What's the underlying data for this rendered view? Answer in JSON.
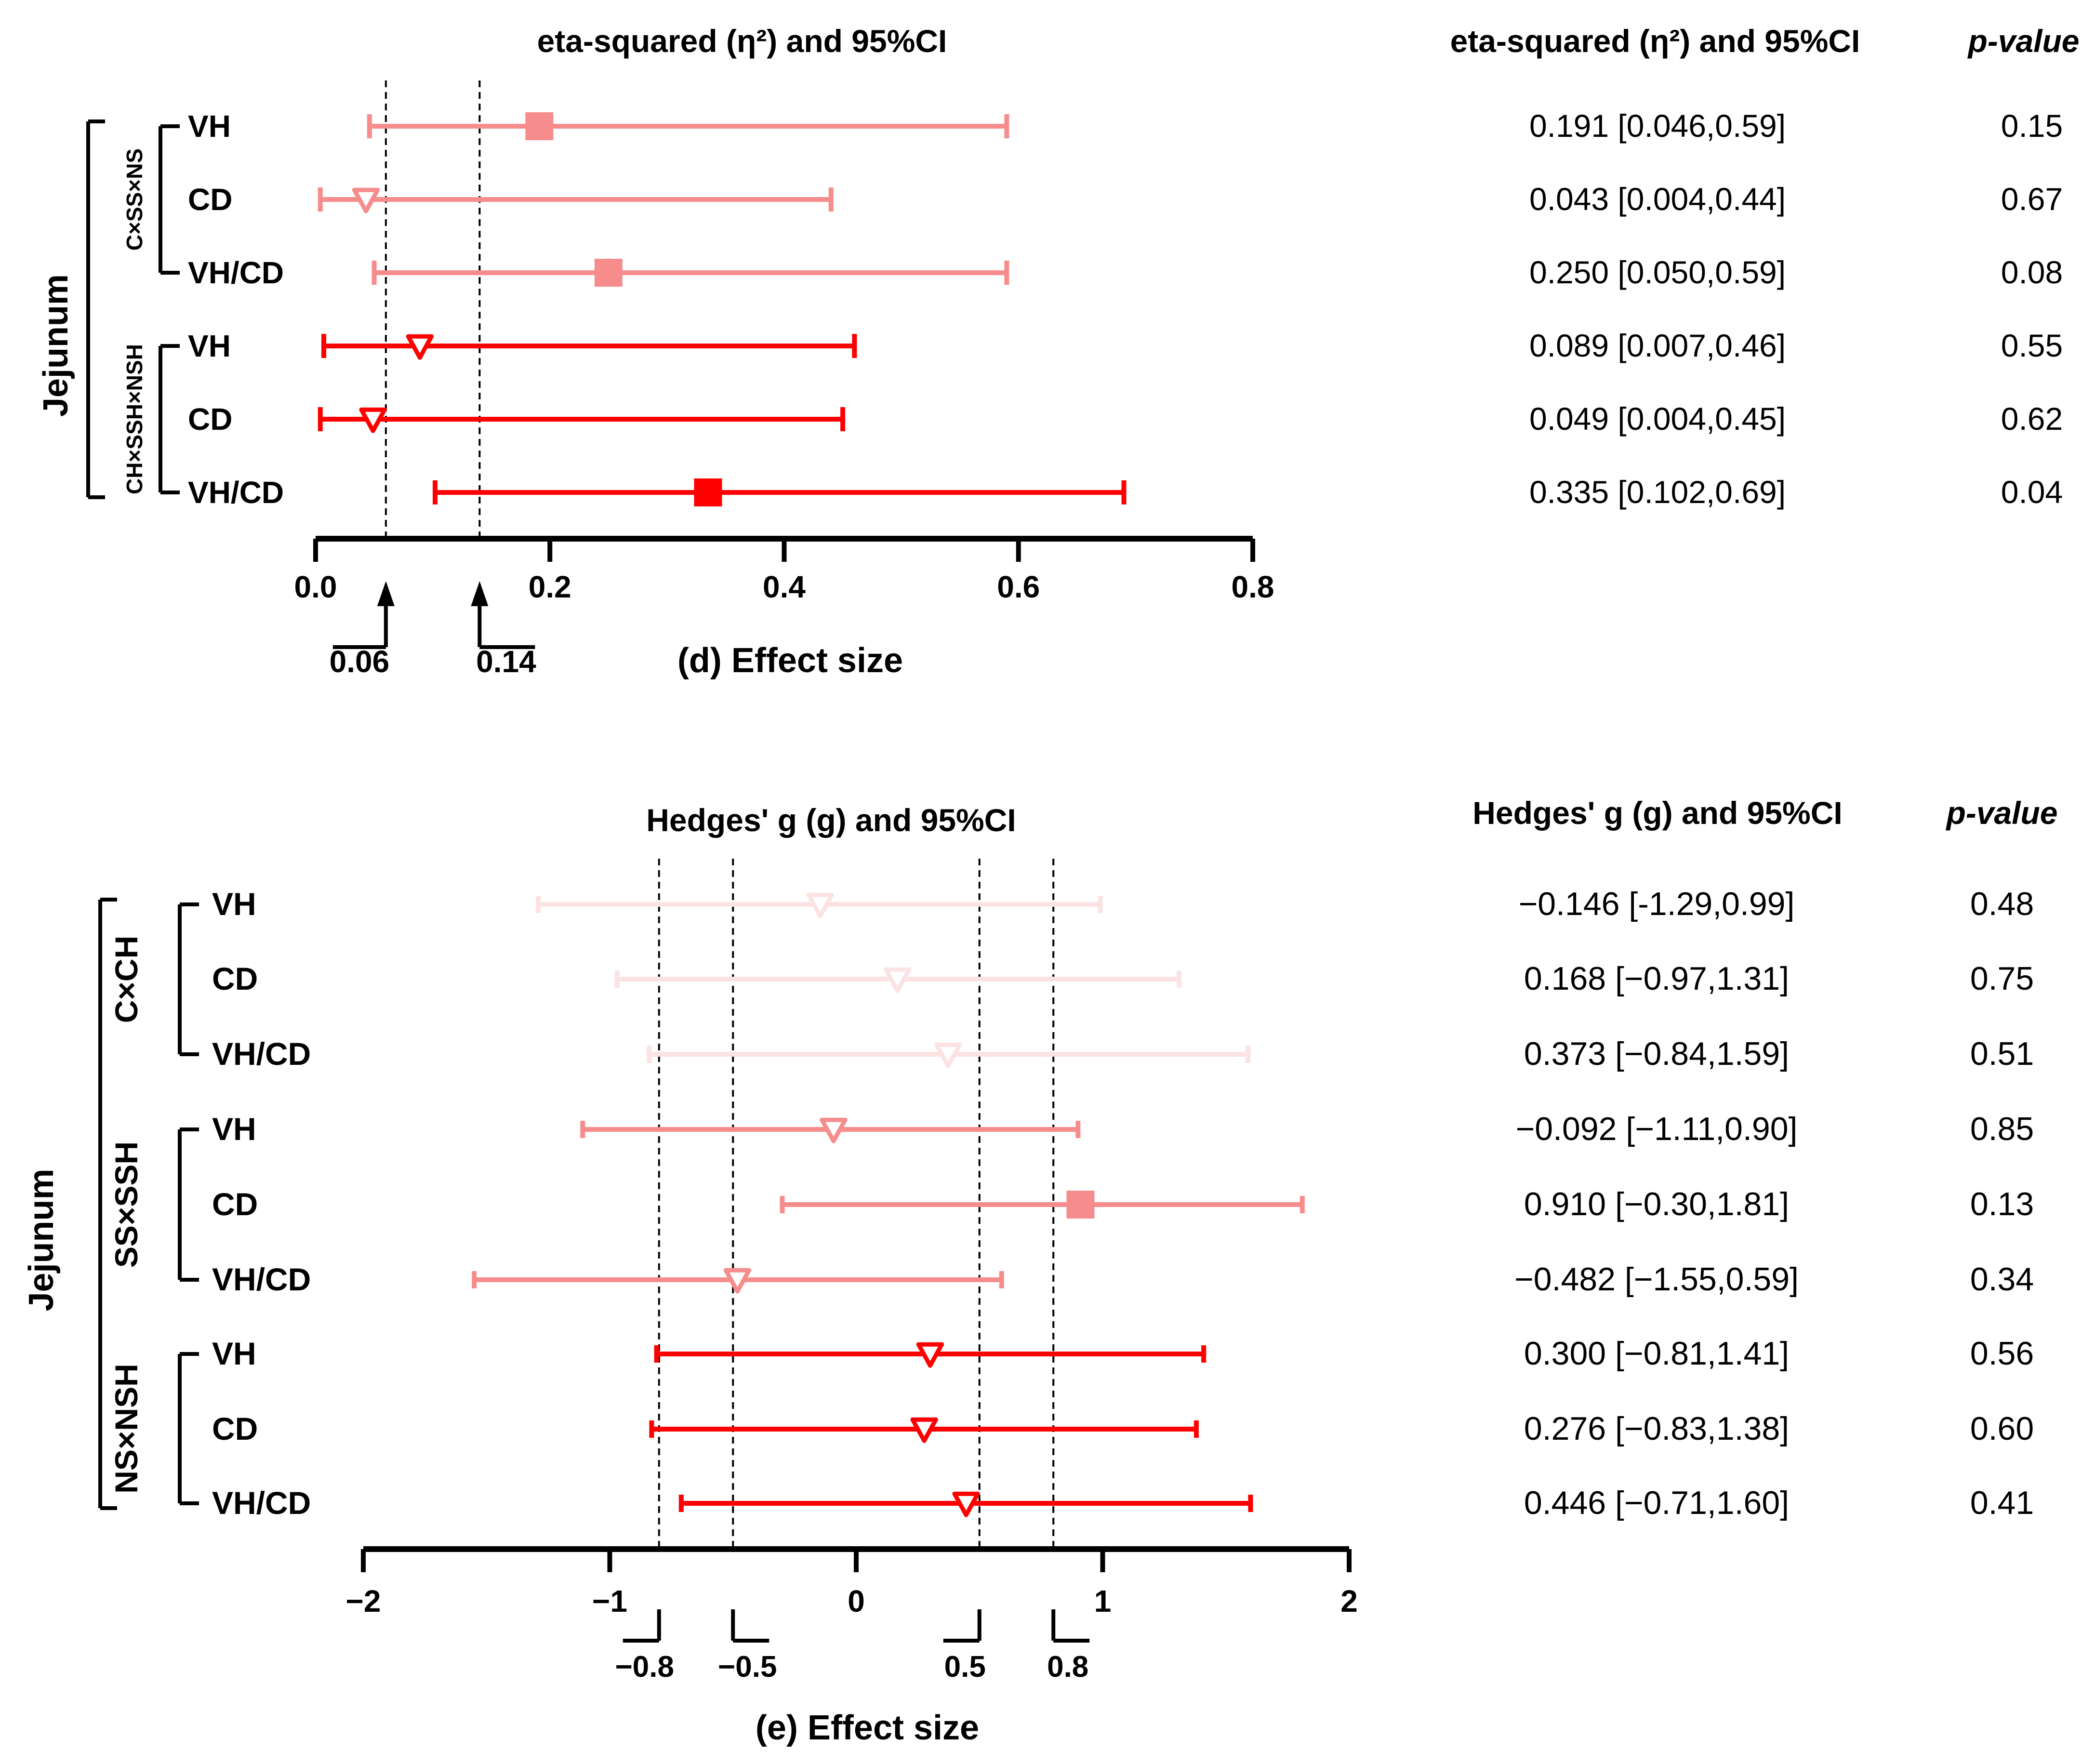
{
  "chart_data": [
    {
      "type": "forest",
      "title": "eta-squared (η²) and 95%CI",
      "xlabel": "(d) Effect size",
      "xlim": [
        0,
        0.8
      ],
      "x_ticks": [
        "0.0",
        "0.2",
        "0.4",
        "0.6",
        "0.8"
      ],
      "reference_lines": [
        0.06,
        0.14
      ],
      "reference_labels": [
        "0.06",
        "0.14"
      ],
      "outer_group": "Jejunum",
      "table_headers": {
        "estimate": "eta-squared (η²) and 95%CI",
        "p": "p-value"
      },
      "colors": {
        "C×SS×NS": "#f78c8c",
        "CH×SSH×NSH": "#fe0000"
      },
      "groups": [
        {
          "name": "C×SS×NS",
          "rows": [
            {
              "label": "VH",
              "estimate": 0.191,
              "lower": 0.046,
              "upper": 0.59,
              "marker": "square",
              "text": "0.191 [0.046,0.59]",
              "p": "0.15"
            },
            {
              "label": "CD",
              "estimate": 0.043,
              "lower": 0.004,
              "upper": 0.44,
              "marker": "triangle",
              "text": "0.043 [0.004,0.44]",
              "p": "0.67"
            },
            {
              "label": "VH/CD",
              "estimate": 0.25,
              "lower": 0.05,
              "upper": 0.59,
              "marker": "square",
              "text": "0.250 [0.050,0.59]",
              "p": "0.08"
            }
          ]
        },
        {
          "name": "CH×SSH×NSH",
          "rows": [
            {
              "label": "VH",
              "estimate": 0.089,
              "lower": 0.007,
              "upper": 0.46,
              "marker": "triangle",
              "text": "0.089 [0.007,0.46]",
              "p": "0.55"
            },
            {
              "label": "CD",
              "estimate": 0.049,
              "lower": 0.004,
              "upper": 0.45,
              "marker": "triangle",
              "text": "0.049 [0.004,0.45]",
              "p": "0.62"
            },
            {
              "label": "VH/CD",
              "estimate": 0.335,
              "lower": 0.102,
              "upper": 0.69,
              "marker": "square",
              "text": "0.335 [0.102,0.69]",
              "p": "0.04"
            }
          ]
        }
      ]
    },
    {
      "type": "forest",
      "title": "Hedges' g (g) and 95%CI",
      "xlabel": "(e) Effect size",
      "xlim": [
        -2,
        2
      ],
      "x_ticks": [
        "−2",
        "−1",
        "0",
        "1",
        "2"
      ],
      "reference_lines": [
        -0.8,
        -0.5,
        0.5,
        0.8
      ],
      "reference_labels": [
        "−0.8",
        "−0.5",
        "0.5",
        "0.8"
      ],
      "outer_group": "Jejunum",
      "table_headers": {
        "estimate": "Hedges' g (g) and 95%CI",
        "p": "p-value"
      },
      "colors": {
        "C×CH": "#fbe3e3",
        "SS×SSH": "#f78c8c",
        "NS×NSH": "#fe0000"
      },
      "groups": [
        {
          "name": "C×CH",
          "rows": [
            {
              "label": "VH",
              "estimate": -0.146,
              "lower": -1.29,
              "upper": 0.99,
              "marker": "triangle",
              "text": "−0.146 [-1.29,0.99]",
              "p": "0.48"
            },
            {
              "label": "CD",
              "estimate": 0.168,
              "lower": -0.97,
              "upper": 1.31,
              "marker": "triangle",
              "text": "0.168 [−0.97,1.31]",
              "p": "0.75"
            },
            {
              "label": "VH/CD",
              "estimate": 0.373,
              "lower": -0.84,
              "upper": 1.59,
              "marker": "triangle",
              "text": "0.373 [−0.84,1.59]",
              "p": "0.51"
            }
          ]
        },
        {
          "name": "SS×SSH",
          "rows": [
            {
              "label": "VH",
              "estimate": -0.092,
              "lower": -1.11,
              "upper": 0.9,
              "marker": "triangle",
              "text": "−0.092 [−1.11,0.90]",
              "p": "0.85"
            },
            {
              "label": "CD",
              "estimate": 0.91,
              "lower": -0.3,
              "upper": 1.81,
              "marker": "square",
              "text": "0.910 [−0.30,1.81]",
              "p": "0.13"
            },
            {
              "label": "VH/CD",
              "estimate": -0.482,
              "lower": -1.55,
              "upper": 0.59,
              "marker": "triangle",
              "text": "−0.482 [−1.55,0.59]",
              "p": "0.34"
            }
          ]
        },
        {
          "name": "NS×NSH",
          "rows": [
            {
              "label": "VH",
              "estimate": 0.3,
              "lower": -0.81,
              "upper": 1.41,
              "marker": "triangle",
              "text": "0.300 [−0.81,1.41]",
              "p": "0.56"
            },
            {
              "label": "CD",
              "estimate": 0.276,
              "lower": -0.83,
              "upper": 1.38,
              "marker": "triangle",
              "text": "0.276 [−0.83,1.38]",
              "p": "0.60"
            },
            {
              "label": "VH/CD",
              "estimate": 0.446,
              "lower": -0.71,
              "upper": 1.6,
              "marker": "triangle",
              "text": "0.446 [−0.71,1.60]",
              "p": "0.41"
            }
          ]
        }
      ]
    }
  ]
}
